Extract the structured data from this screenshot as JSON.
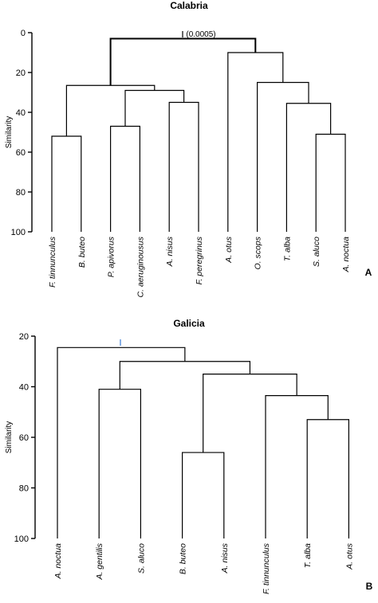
{
  "chart_data": [
    {
      "type": "dendrogram",
      "title": "Calabria",
      "ylabel": "Similarity",
      "panel_label": "A",
      "annotation": "(0.0005)",
      "ylim": [
        0,
        100
      ],
      "yticks": [
        0,
        20,
        40,
        60,
        80,
        100
      ],
      "leaves": [
        "F. tinnunculus",
        "B. buteo",
        "P. apivorus",
        "C. aeruginousus",
        "A. nisus",
        "F. peregrinus",
        "A. otus",
        "O. scops",
        "T. alba",
        "S. aluco",
        "A. noctua"
      ],
      "merges": [
        {
          "left": "S. aluco",
          "right": "A. noctua",
          "height": 51
        },
        {
          "left": "P. apivorus",
          "right": "C. aeruginousus",
          "height": 47
        },
        {
          "left": "F. tinnunculus",
          "right": "B. buteo",
          "height": 52
        },
        {
          "left": "A. nisus",
          "right": "F. peregrinus",
          "height": 35
        },
        {
          "left": "T. alba",
          "right": "(S. aluco, A. noctua)",
          "height": 35.5
        },
        {
          "left": "(P. apivorus, C. aeruginousus)",
          "right": "(A. nisus, F. peregrinus)",
          "height": 29
        },
        {
          "left": "(F. tinnunculus, B. buteo)",
          "right": "(P. apivorus … F. peregrinus)",
          "height": 26.5
        },
        {
          "left": "O. scops",
          "right": "(T. alba, S. aluco, A. noctua)",
          "height": 25
        },
        {
          "left": "A. otus",
          "right": "(O. scops … A. noctua)",
          "height": 10
        },
        {
          "left": "(F. tinnunculus … F. peregrinus)",
          "right": "(A. otus … A. noctua)",
          "height": 3
        }
      ]
    },
    {
      "type": "dendrogram",
      "title": "Galicia",
      "ylabel": "Similarity",
      "panel_label": "B",
      "ylim": [
        20,
        100
      ],
      "yticks": [
        20,
        40,
        60,
        80,
        100
      ],
      "leaves": [
        "A. noctua",
        "A. gentilis",
        "S. aluco",
        "B. buteo",
        "A. nisus",
        "F. tinnunculus",
        "T. alba",
        "A. otus"
      ],
      "merges": [
        {
          "left": "B. buteo",
          "right": "A. nisus",
          "height": 66
        },
        {
          "left": "T. alba",
          "right": "A. otus",
          "height": 53
        },
        {
          "left": "F. tinnunculus",
          "right": "(T. alba, A. otus)",
          "height": 43.5
        },
        {
          "left": "A. gentilis",
          "right": "S. aluco",
          "height": 41
        },
        {
          "left": "(B. buteo, A. nisus)",
          "right": "(F. tinnunculus, T. alba, A. otus)",
          "height": 35
        },
        {
          "left": "(A. gentilis, S. aluco)",
          "right": "(B. buteo … A. otus)",
          "height": 30
        },
        {
          "left": "A. noctua",
          "right": "(A. gentilis … A. otus)",
          "height": 24.5
        }
      ]
    }
  ]
}
